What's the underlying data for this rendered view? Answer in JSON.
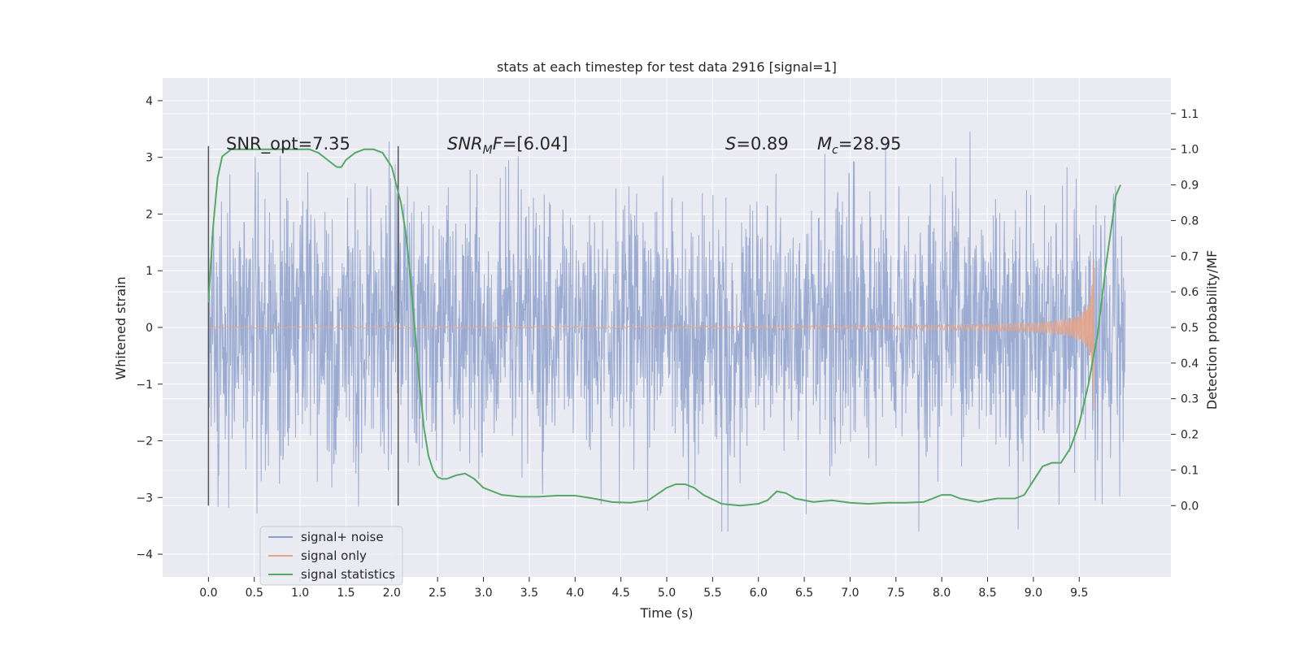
{
  "chart_data": {
    "type": "line",
    "title": "stats at each timestep for test data 2916 [signal=1]",
    "xlabel": "Time (s)",
    "ylabel_left": "Whitened strain",
    "ylabel_right": "Detection probability/MF",
    "xlim": [
      -0.5,
      10.5
    ],
    "ylim_left": [
      -4.4,
      4.4
    ],
    "ylim_right": [
      -0.2,
      1.2
    ],
    "xticks": [
      "0.0",
      "0.5",
      "1.0",
      "1.5",
      "2.0",
      "2.5",
      "3.0",
      "3.5",
      "4.0",
      "4.5",
      "5.0",
      "5.5",
      "6.0",
      "6.5",
      "7.0",
      "7.5",
      "8.0",
      "8.5",
      "9.0",
      "9.5"
    ],
    "yticks_left": [
      "−4",
      "−3",
      "−2",
      "−1",
      "0",
      "1",
      "2",
      "3",
      "4"
    ],
    "yticks_right": [
      "0.0",
      "0.1",
      "0.2",
      "0.3",
      "0.4",
      "0.5",
      "0.6",
      "0.7",
      "0.8",
      "0.9",
      "1.0",
      "1.1"
    ],
    "grid": true,
    "legend_position": "lower-left",
    "annotations": [
      {
        "prefix": "SNR_opt",
        "suffix": "=7.35"
      },
      {
        "prefix": "SNR",
        "sub": "M",
        "mid": "F",
        "suffix": "=[6.04]"
      },
      {
        "prefix": "S",
        "suffix": "=0.89"
      },
      {
        "prefix": "M",
        "sub": "c",
        "suffix": "=28.95"
      }
    ],
    "vertical_markers": [
      0.0,
      2.07
    ],
    "series": [
      {
        "name": "signal+ noise",
        "color": "#8da0cb",
        "axis": "left",
        "description_range": [
          -3.6,
          4.0
        ],
        "t_range": [
          0.0,
          10.0
        ]
      },
      {
        "name": "signal only",
        "color": "#e5a58a",
        "axis": "left",
        "t_range": [
          0.0,
          9.66
        ],
        "peak_amplitude": 1.8
      },
      {
        "name": "signal statistics",
        "color": "#55a868",
        "axis": "right",
        "x": [
          0.0,
          0.05,
          0.1,
          0.15,
          0.25,
          0.4,
          0.6,
          0.8,
          1.0,
          1.1,
          1.2,
          1.3,
          1.4,
          1.45,
          1.5,
          1.6,
          1.7,
          1.8,
          1.9,
          2.0,
          2.05,
          2.1,
          2.15,
          2.2,
          2.25,
          2.3,
          2.35,
          2.4,
          2.45,
          2.5,
          2.55,
          2.6,
          2.7,
          2.8,
          2.9,
          3.0,
          3.2,
          3.4,
          3.6,
          3.8,
          4.0,
          4.2,
          4.4,
          4.6,
          4.8,
          5.0,
          5.1,
          5.2,
          5.3,
          5.4,
          5.6,
          5.8,
          6.0,
          6.1,
          6.2,
          6.3,
          6.4,
          6.6,
          6.8,
          7.0,
          7.2,
          7.4,
          7.6,
          7.8,
          7.9,
          8.0,
          8.1,
          8.2,
          8.4,
          8.6,
          8.8,
          8.9,
          9.0,
          9.1,
          9.2,
          9.3,
          9.4,
          9.5,
          9.6,
          9.7,
          9.8,
          9.9,
          9.95
        ],
        "values": [
          0.57,
          0.78,
          0.92,
          0.98,
          1.0,
          1.0,
          1.0,
          1.0,
          1.0,
          1.0,
          0.99,
          0.97,
          0.95,
          0.95,
          0.97,
          0.99,
          1.0,
          1.0,
          0.99,
          0.95,
          0.9,
          0.85,
          0.77,
          0.65,
          0.5,
          0.35,
          0.22,
          0.14,
          0.1,
          0.08,
          0.075,
          0.075,
          0.085,
          0.09,
          0.075,
          0.05,
          0.03,
          0.025,
          0.025,
          0.028,
          0.028,
          0.02,
          0.01,
          0.008,
          0.015,
          0.05,
          0.06,
          0.06,
          0.05,
          0.03,
          0.005,
          0.0,
          0.005,
          0.015,
          0.04,
          0.035,
          0.02,
          0.01,
          0.015,
          0.008,
          0.005,
          0.008,
          0.008,
          0.01,
          0.02,
          0.03,
          0.03,
          0.02,
          0.01,
          0.02,
          0.02,
          0.03,
          0.07,
          0.11,
          0.12,
          0.12,
          0.16,
          0.23,
          0.34,
          0.48,
          0.69,
          0.87,
          0.9
        ]
      }
    ]
  }
}
